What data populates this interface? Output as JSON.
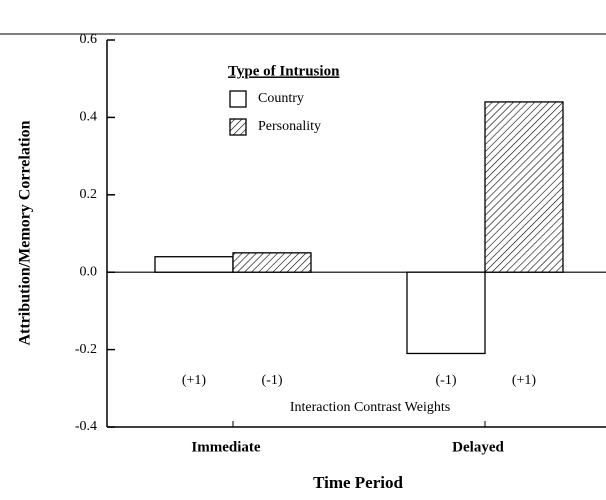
{
  "chart_data": {
    "type": "bar",
    "ylabel": "Attribution/Memory Correlation",
    "xlabel": "Time Period",
    "legend_title": "Type of Intrusion",
    "categories": [
      "Immediate",
      "Delayed"
    ],
    "series": [
      {
        "name": "Country",
        "color": "#ffffff",
        "hatch": false,
        "values": [
          0.04,
          -0.21
        ]
      },
      {
        "name": "Personality",
        "color": "#ffffff",
        "hatch": true,
        "values": [
          0.05,
          0.44
        ]
      }
    ],
    "contrast_weights": {
      "label": "Interaction Contrast Weights",
      "weights": [
        [
          "(+1)",
          "(-1)"
        ],
        [
          "(-1)",
          "(+1)"
        ]
      ]
    },
    "ylim": [
      -0.4,
      0.6
    ],
    "yticks": [
      {
        "value": -0.4,
        "label": "-0.4"
      },
      {
        "value": -0.2,
        "label": "-0.2"
      },
      {
        "value": 0,
        "label": "0.0"
      },
      0.2,
      0.4,
      0.6
    ]
  }
}
